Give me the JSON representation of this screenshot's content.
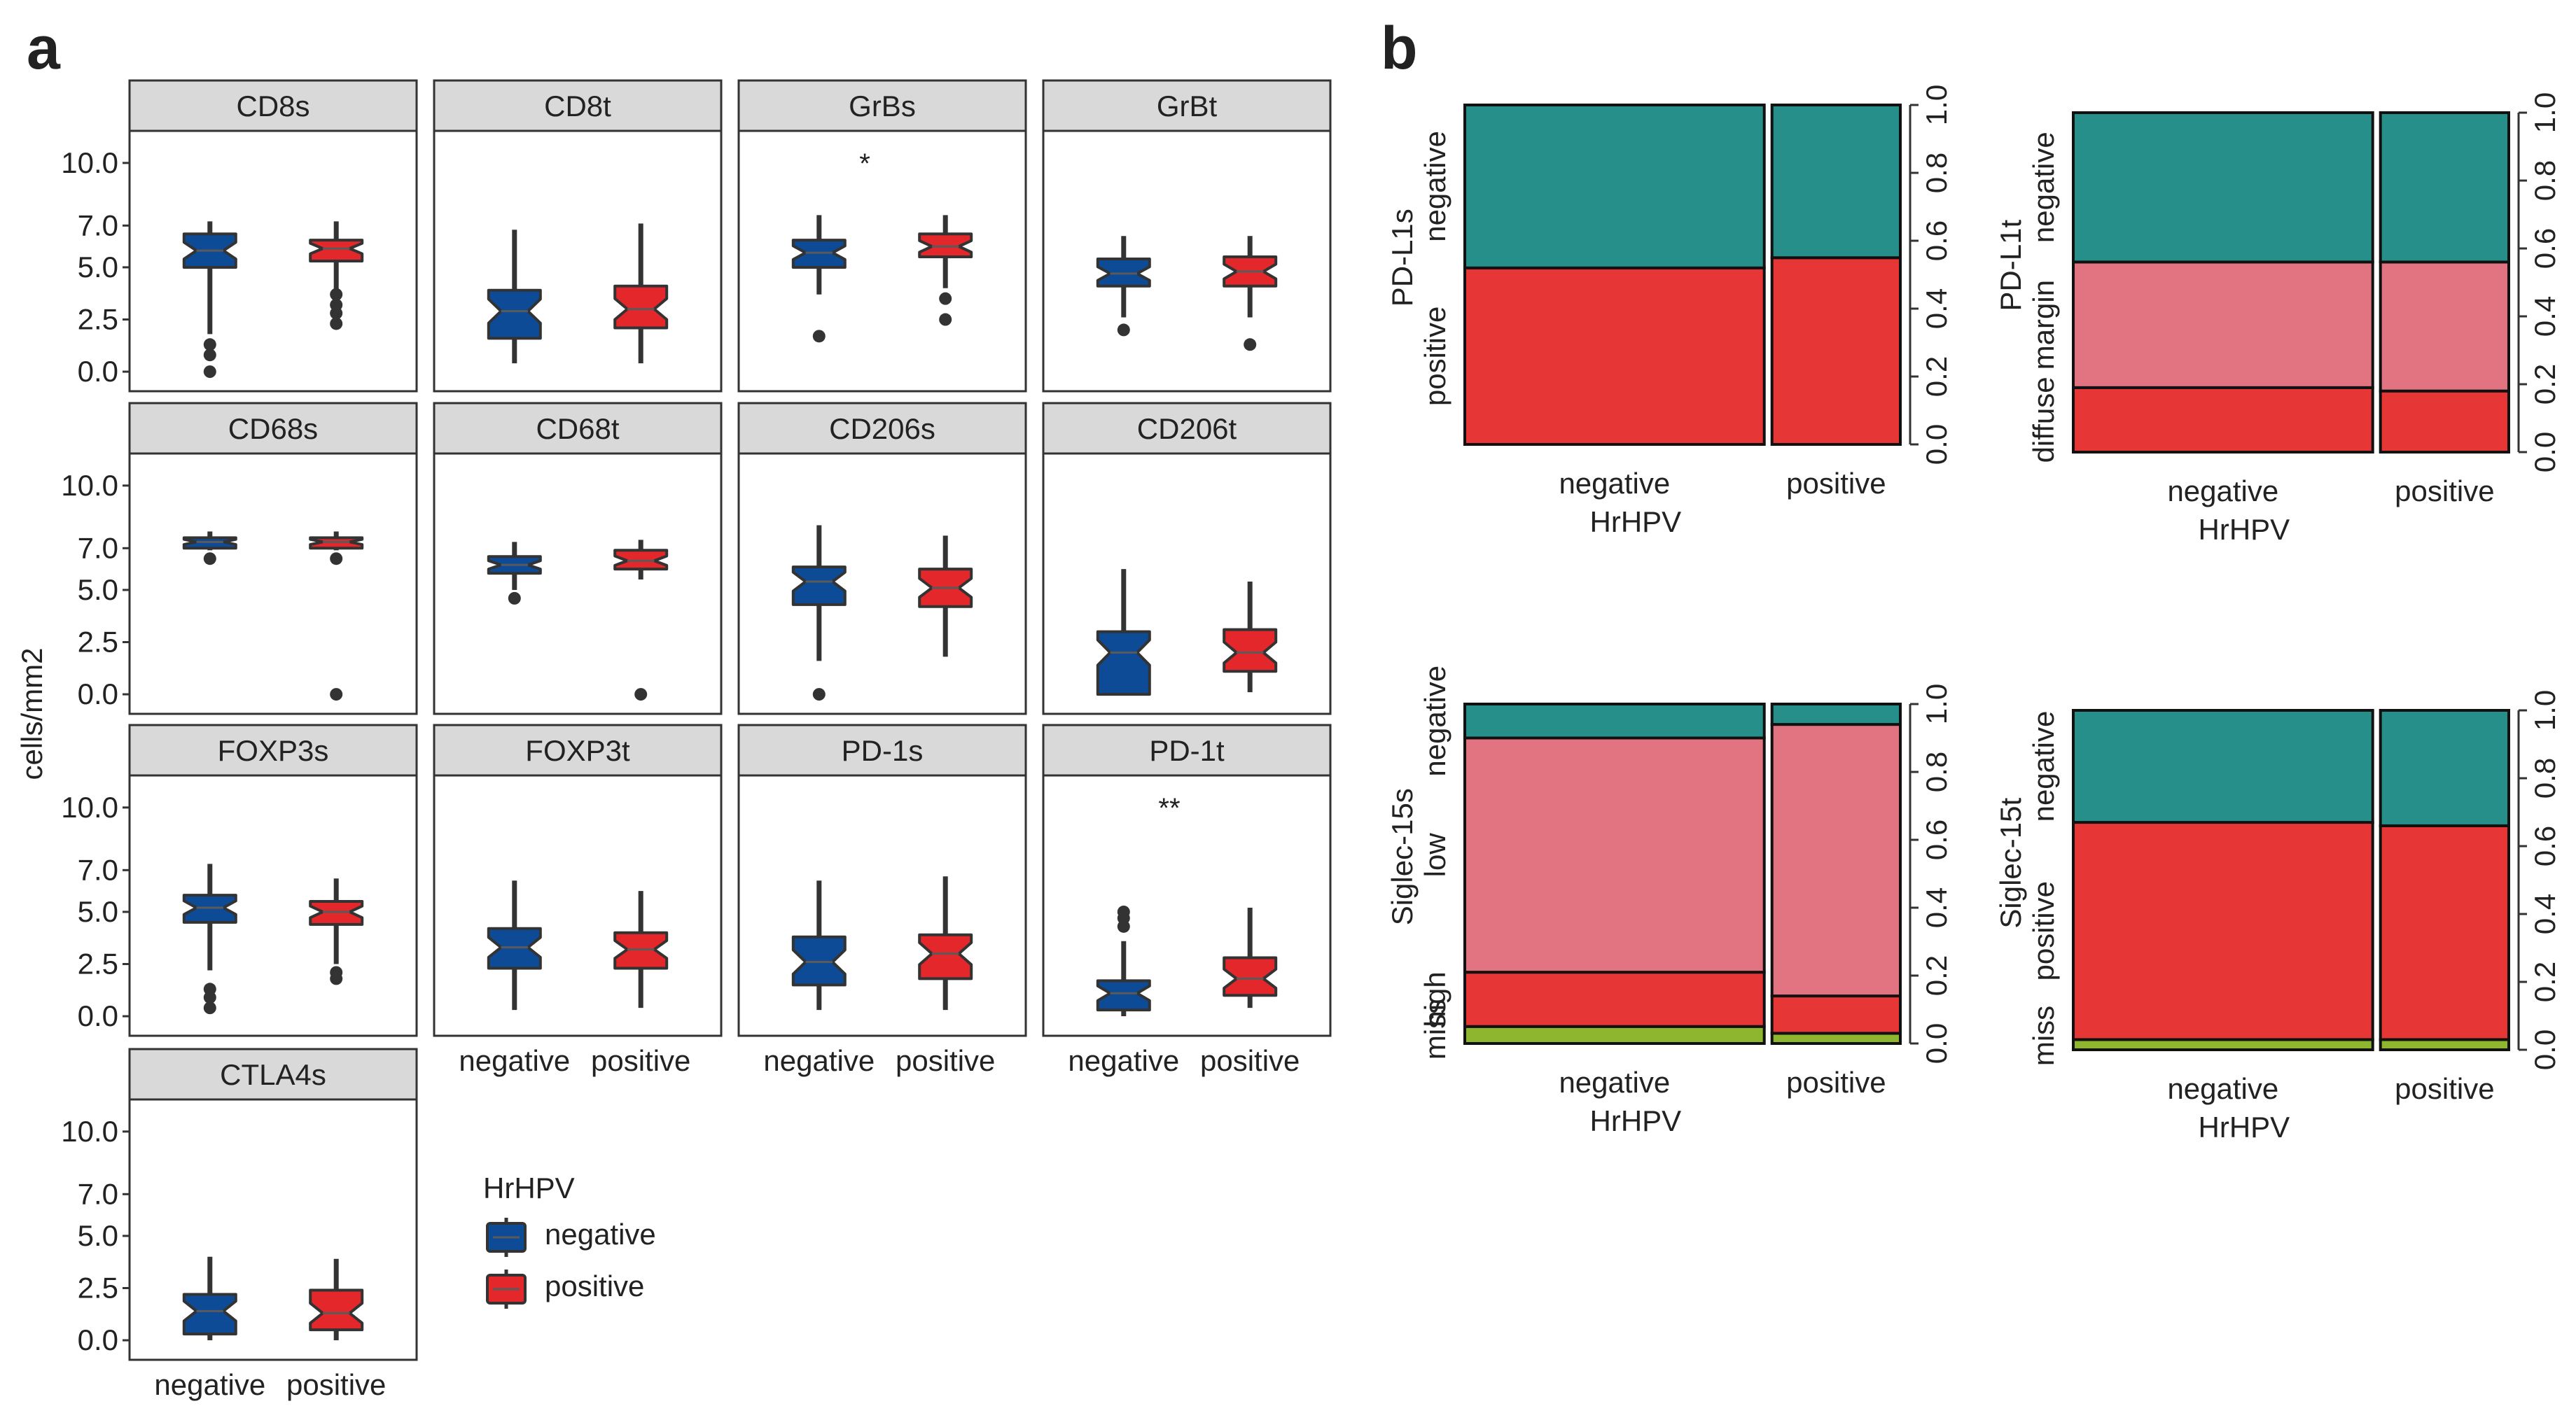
{
  "figure": {
    "panel_a_label": "a",
    "panel_b_label": "b",
    "significance_labels": {
      "GrBs": "*",
      "PD-1t": "**"
    }
  },
  "colors": {
    "negative": "#0d4b97",
    "positive": "#e3272a",
    "teal": "#268f8a",
    "red": "#e73636",
    "pink": "#e27481",
    "olive": "#8fb62f",
    "strip": "#d9d9d9",
    "dark": "#333333"
  },
  "chart_data": [
    {
      "id": "panel-a",
      "type": "boxplot",
      "ylabel": "cells/mm2",
      "y_ticks": [
        "0.0",
        "2.5",
        "5.0",
        "7.0",
        "10.0"
      ],
      "y_tick_values": [
        0.0,
        2.5,
        5.0,
        7.0,
        10.0
      ],
      "categories": [
        "negative",
        "positive"
      ],
      "legend": {
        "title": "HrHPV",
        "entries": [
          "negative",
          "positive"
        ]
      },
      "panels": [
        {
          "name": "CD8s",
          "sig": "",
          "boxes": [
            {
              "group": "negative",
              "min": 1.8,
              "q1": 5.0,
              "median": 5.8,
              "q3": 6.6,
              "max": 7.2,
              "outliers": [
                0,
                0.8,
                1.3
              ]
            },
            {
              "group": "positive",
              "min": 2.5,
              "q1": 5.3,
              "median": 5.9,
              "q3": 6.3,
              "max": 7.2,
              "outliers": [
                2.3,
                2.8,
                3.2,
                3.7
              ]
            }
          ]
        },
        {
          "name": "CD8t",
          "sig": "",
          "boxes": [
            {
              "group": "negative",
              "min": 0.4,
              "q1": 1.6,
              "median": 2.9,
              "q3": 3.9,
              "max": 6.8,
              "outliers": []
            },
            {
              "group": "positive",
              "min": 0.4,
              "q1": 2.1,
              "median": 3.0,
              "q3": 4.1,
              "max": 7.1,
              "outliers": []
            }
          ]
        },
        {
          "name": "GrBs",
          "sig": "*",
          "boxes": [
            {
              "group": "negative",
              "min": 3.7,
              "q1": 5.0,
              "median": 5.7,
              "q3": 6.3,
              "max": 7.5,
              "outliers": [
                1.7
              ]
            },
            {
              "group": "positive",
              "min": 4.0,
              "q1": 5.5,
              "median": 6.0,
              "q3": 6.6,
              "max": 7.5,
              "outliers": [
                2.5,
                3.5
              ]
            }
          ]
        },
        {
          "name": "GrBt",
          "sig": "",
          "boxes": [
            {
              "group": "negative",
              "min": 2.6,
              "q1": 4.1,
              "median": 4.7,
              "q3": 5.4,
              "max": 6.5,
              "outliers": [
                2.0
              ]
            },
            {
              "group": "positive",
              "min": 2.6,
              "q1": 4.1,
              "median": 4.8,
              "q3": 5.5,
              "max": 6.5,
              "outliers": [
                1.3
              ]
            }
          ]
        },
        {
          "name": "CD68s",
          "sig": "",
          "boxes": [
            {
              "group": "negative",
              "min": 6.9,
              "q1": 7.0,
              "median": 7.3,
              "q3": 7.5,
              "max": 7.8,
              "outliers": [
                6.5
              ]
            },
            {
              "group": "positive",
              "min": 6.9,
              "q1": 7.0,
              "median": 7.3,
              "q3": 7.5,
              "max": 7.8,
              "outliers": [
                6.5,
                0.0
              ]
            }
          ]
        },
        {
          "name": "CD68t",
          "sig": "",
          "boxes": [
            {
              "group": "negative",
              "min": 5.0,
              "q1": 5.8,
              "median": 6.2,
              "q3": 6.6,
              "max": 7.3,
              "outliers": [
                4.6
              ]
            },
            {
              "group": "positive",
              "min": 5.5,
              "q1": 6.0,
              "median": 6.4,
              "q3": 6.9,
              "max": 7.4,
              "outliers": [
                0.0
              ]
            }
          ]
        },
        {
          "name": "CD206s",
          "sig": "",
          "boxes": [
            {
              "group": "negative",
              "min": 1.6,
              "q1": 4.3,
              "median": 5.4,
              "q3": 6.1,
              "max": 8.1,
              "outliers": [
                0.0
              ]
            },
            {
              "group": "positive",
              "min": 1.8,
              "q1": 4.2,
              "median": 5.1,
              "q3": 6.0,
              "max": 7.6,
              "outliers": []
            }
          ]
        },
        {
          "name": "CD206t",
          "sig": "",
          "boxes": [
            {
              "group": "negative",
              "min": 0.0,
              "q1": 0.0,
              "median": 2.0,
              "q3": 3.0,
              "max": 6.0,
              "outliers": []
            },
            {
              "group": "positive",
              "min": 0.1,
              "q1": 1.1,
              "median": 2.0,
              "q3": 3.1,
              "max": 5.4,
              "outliers": []
            }
          ]
        },
        {
          "name": "FOXP3s",
          "sig": "",
          "boxes": [
            {
              "group": "negative",
              "min": 2.2,
              "q1": 4.5,
              "median": 5.2,
              "q3": 5.8,
              "max": 7.3,
              "outliers": [
                0.4,
                0.9,
                1.3
              ]
            },
            {
              "group": "positive",
              "min": 2.5,
              "q1": 4.4,
              "median": 5.0,
              "q3": 5.5,
              "max": 6.6,
              "outliers": [
                1.8,
                2.1
              ]
            }
          ]
        },
        {
          "name": "FOXP3t",
          "sig": "",
          "boxes": [
            {
              "group": "negative",
              "min": 0.3,
              "q1": 2.3,
              "median": 3.3,
              "q3": 4.2,
              "max": 6.5,
              "outliers": []
            },
            {
              "group": "positive",
              "min": 0.4,
              "q1": 2.3,
              "median": 3.2,
              "q3": 4.0,
              "max": 6.0,
              "outliers": []
            }
          ]
        },
        {
          "name": "PD-1s",
          "sig": "",
          "boxes": [
            {
              "group": "negative",
              "min": 0.3,
              "q1": 1.5,
              "median": 2.6,
              "q3": 3.8,
              "max": 6.5,
              "outliers": []
            },
            {
              "group": "positive",
              "min": 0.3,
              "q1": 1.8,
              "median": 3.0,
              "q3": 3.9,
              "max": 6.7,
              "outliers": []
            }
          ]
        },
        {
          "name": "PD-1t",
          "sig": "**",
          "boxes": [
            {
              "group": "negative",
              "min": 0.0,
              "q1": 0.3,
              "median": 1.1,
              "q3": 1.7,
              "max": 3.6,
              "outliers": [
                4.3,
                4.7,
                5.0
              ]
            },
            {
              "group": "positive",
              "min": 0.4,
              "q1": 1.0,
              "median": 1.8,
              "q3": 2.8,
              "max": 5.2,
              "outliers": []
            }
          ]
        },
        {
          "name": "CTLA4s",
          "sig": "",
          "boxes": [
            {
              "group": "negative",
              "min": 0.0,
              "q1": 0.3,
              "median": 1.4,
              "q3": 2.2,
              "max": 4.0,
              "outliers": []
            },
            {
              "group": "positive",
              "min": 0.0,
              "q1": 0.5,
              "median": 1.3,
              "q3": 2.4,
              "max": 3.9,
              "outliers": []
            }
          ]
        }
      ]
    },
    {
      "id": "panel-b",
      "type": "mosaic",
      "xlabel": "HrHPV",
      "categories": [
        "negative",
        "positive"
      ],
      "col_widths": [
        0.7,
        0.3
      ],
      "right_ticks": [
        "0.0",
        "0.2",
        "0.4",
        "0.6",
        "0.8",
        "1.0"
      ],
      "plots": [
        {
          "ylabel": "PD-L1s",
          "levels": [
            {
              "label": "positive",
              "color": "red"
            },
            {
              "label": "negative",
              "color": "teal"
            }
          ],
          "proportions": {
            "negative": [
              0.52,
              0.48
            ],
            "positive": [
              0.55,
              0.45
            ]
          }
        },
        {
          "ylabel": "PD-L1t",
          "levels": [
            {
              "label": "diffuse",
              "color": "red"
            },
            {
              "label": "margin",
              "color": "pink"
            },
            {
              "label": "negative",
              "color": "teal"
            }
          ],
          "proportions": {
            "negative": [
              0.19,
              0.37,
              0.44
            ],
            "positive": [
              0.18,
              0.38,
              0.44
            ]
          }
        },
        {
          "ylabel": "Siglec-15s",
          "levels": [
            {
              "label": "miss",
              "color": "olive"
            },
            {
              "label": "high",
              "color": "red"
            },
            {
              "label": "low",
              "color": "pink"
            },
            {
              "label": "negative",
              "color": "teal"
            }
          ],
          "proportions": {
            "negative": [
              0.05,
              0.16,
              0.69,
              0.1
            ],
            "positive": [
              0.03,
              0.11,
              0.8,
              0.06
            ]
          }
        },
        {
          "ylabel": "Siglec-15t",
          "levels": [
            {
              "label": "miss",
              "color": "olive"
            },
            {
              "label": "positive",
              "color": "red"
            },
            {
              "label": "negative",
              "color": "teal"
            }
          ],
          "proportions": {
            "negative": [
              0.03,
              0.64,
              0.33
            ],
            "positive": [
              0.03,
              0.63,
              0.34
            ]
          }
        }
      ]
    }
  ]
}
